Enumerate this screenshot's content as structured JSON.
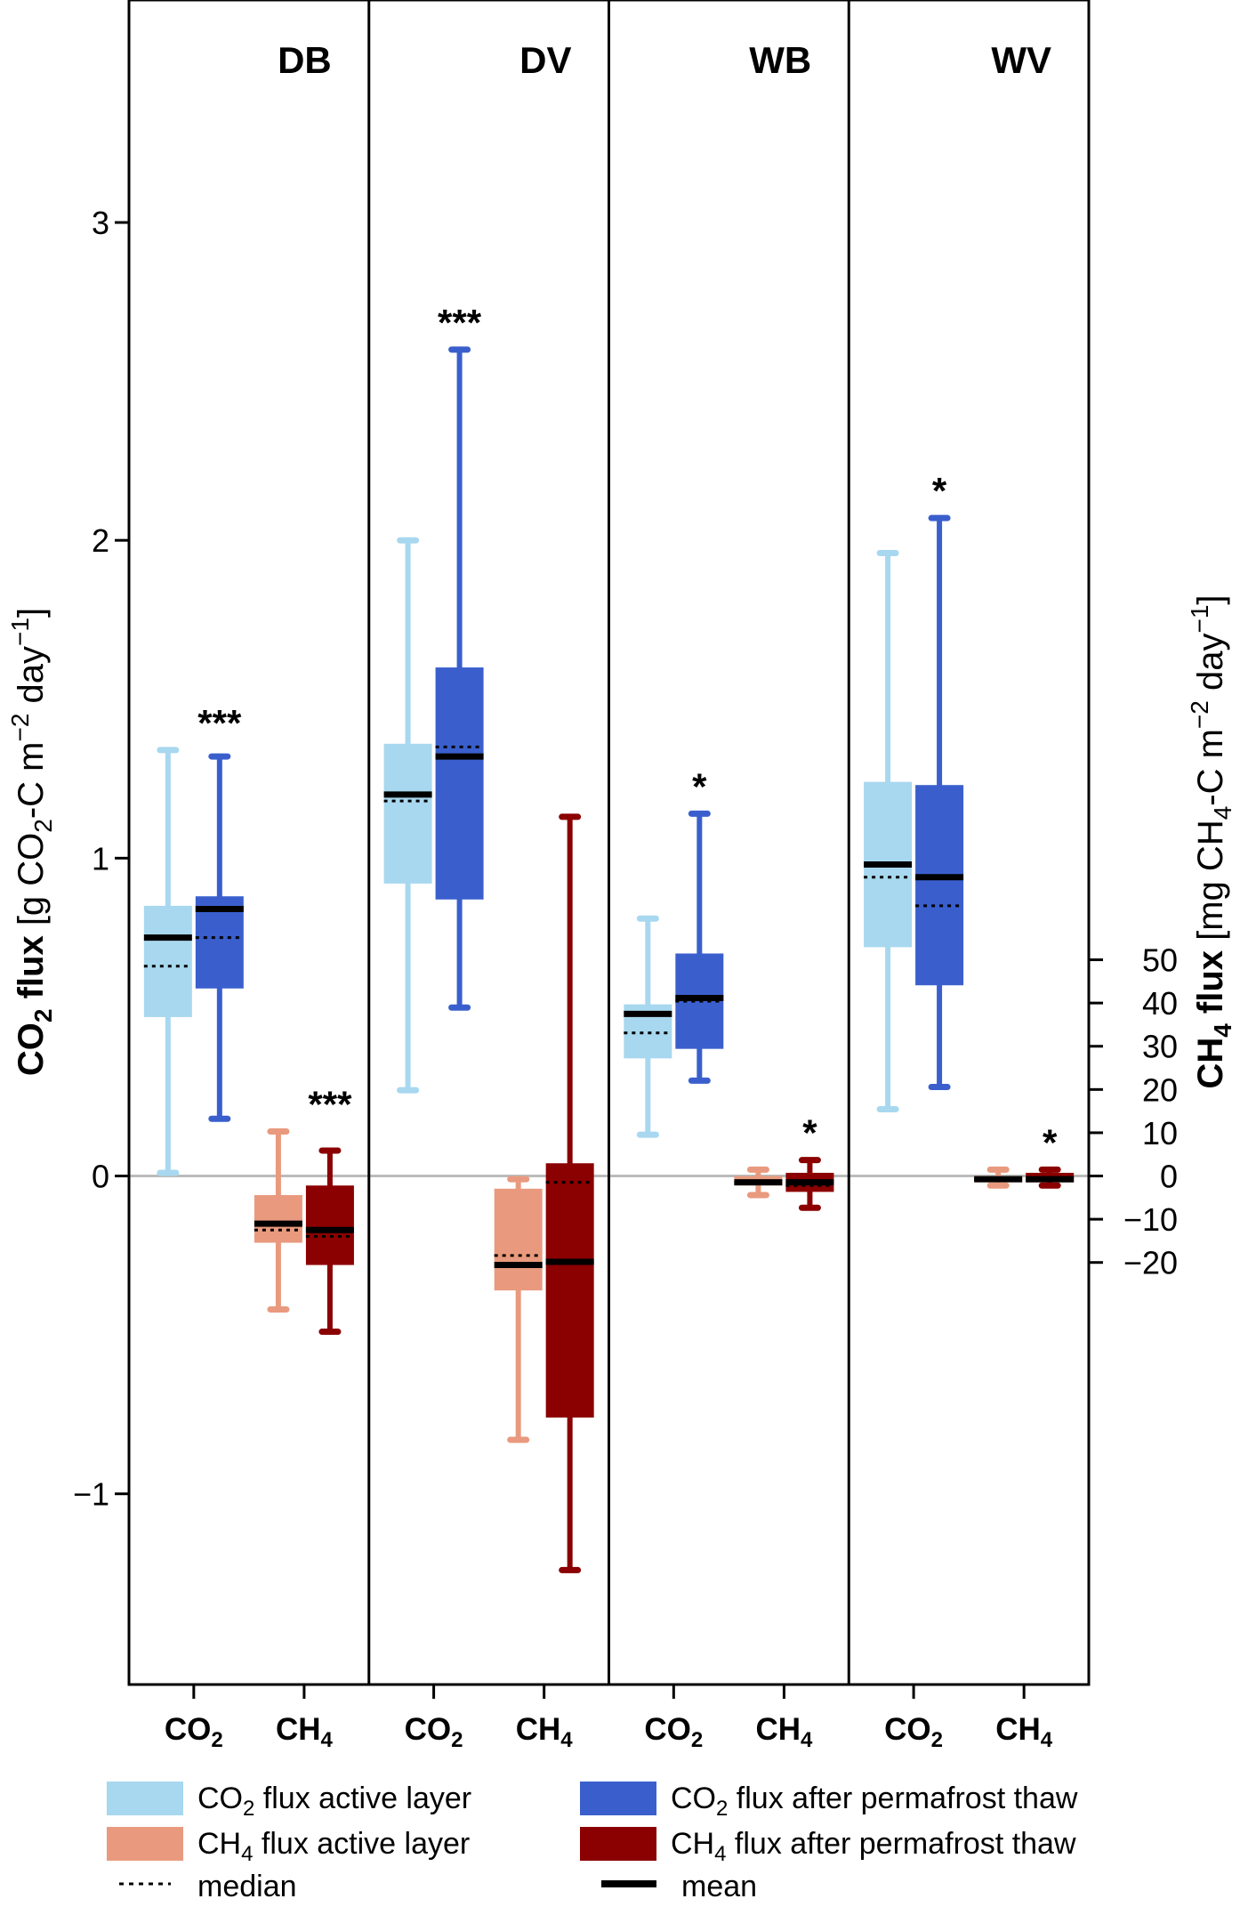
{
  "chart_data": {
    "type": "box",
    "panels": [
      "DB",
      "DV",
      "WB",
      "WV"
    ],
    "groups": [
      "CO2",
      "CH4"
    ],
    "y_left": {
      "label": "CO2 flux [g CO2-C m-2 day-1]",
      "label_bold": "CO",
      "label_bold_sub": "2",
      "label_bold_rest": " flux",
      "label_rest": " [g CO",
      "label_rest_sub": "2",
      "label_rest_2": "-C m",
      "label_rest_sup": "−2",
      "label_rest_3": " day",
      "label_rest_sup2": "−1",
      "label_rest_4": "]",
      "ticks": [
        -1,
        0,
        1,
        2,
        3
      ],
      "tick_labels": [
        "−1",
        "0",
        "1",
        "2",
        "3"
      ],
      "ylim": [
        -1.6,
        3.7
      ]
    },
    "y_right": {
      "label": "CH4 flux [mg CH4-C m-2 day-1]",
      "label_bold": "CH",
      "label_bold_sub": "4",
      "label_bold_rest": " flux",
      "label_rest": " [mg CH",
      "label_rest_sub": "4",
      "label_rest_2": "-C m",
      "label_rest_sup": "−2",
      "label_rest_3": " day",
      "label_rest_sup2": "−1",
      "label_rest_4": "]",
      "ticks": [
        -20,
        -10,
        0,
        10,
        20,
        30,
        40,
        50
      ],
      "tick_labels": [
        "−20",
        "−10",
        "0",
        "10",
        "20",
        "30",
        "40",
        "50"
      ]
    },
    "x_tick_labels": [
      {
        "main": "CO",
        "sub": "2"
      },
      {
        "main": "CH",
        "sub": "4"
      },
      {
        "main": "CO",
        "sub": "2"
      },
      {
        "main": "CH",
        "sub": "4"
      },
      {
        "main": "CO",
        "sub": "2"
      },
      {
        "main": "CH",
        "sub": "4"
      },
      {
        "main": "CO",
        "sub": "2"
      },
      {
        "main": "CH",
        "sub": "4"
      }
    ],
    "series": [
      {
        "key": "co2_active",
        "color": "#a8d8ef"
      },
      {
        "key": "co2_thaw",
        "color": "#3a5fcd"
      },
      {
        "key": "ch4_active",
        "color": "#e99a7e"
      },
      {
        "key": "ch4_thaw",
        "color": "#8b0000"
      }
    ],
    "boxes": [
      {
        "panel": "DB",
        "group": "CO2",
        "series": "co2_active",
        "whisker_low": 0.01,
        "q1": 0.5,
        "median": 0.66,
        "mean": 0.75,
        "q3": 0.85,
        "whisker_high": 1.34
      },
      {
        "panel": "DB",
        "group": "CO2",
        "series": "co2_thaw",
        "whisker_low": 0.18,
        "q1": 0.59,
        "median": 0.75,
        "mean": 0.84,
        "q3": 0.88,
        "whisker_high": 1.32
      },
      {
        "panel": "DB",
        "group": "CH4",
        "series": "ch4_active",
        "whisker_low": -0.42,
        "q1": -0.21,
        "median": -0.17,
        "mean": -0.15,
        "q3": -0.06,
        "whisker_high": 0.14
      },
      {
        "panel": "DB",
        "group": "CH4",
        "series": "ch4_thaw",
        "whisker_low": -0.49,
        "q1": -0.28,
        "median": -0.19,
        "mean": -0.17,
        "q3": -0.03,
        "whisker_high": 0.08
      },
      {
        "panel": "DV",
        "group": "CO2",
        "series": "co2_active",
        "whisker_low": 0.27,
        "q1": 0.92,
        "median": 1.18,
        "mean": 1.2,
        "q3": 1.36,
        "whisker_high": 2.0
      },
      {
        "panel": "DV",
        "group": "CO2",
        "series": "co2_thaw",
        "whisker_low": 0.53,
        "q1": 0.87,
        "median": 1.35,
        "mean": 1.32,
        "q3": 1.6,
        "whisker_high": 2.6
      },
      {
        "panel": "DV",
        "group": "CH4",
        "series": "ch4_active",
        "whisker_low": -0.83,
        "q1": -0.36,
        "median": -0.25,
        "mean": -0.28,
        "q3": -0.04,
        "whisker_high": -0.01
      },
      {
        "panel": "DV",
        "group": "CH4",
        "series": "ch4_thaw",
        "whisker_low": -1.24,
        "q1": -0.76,
        "median": -0.02,
        "mean": -0.27,
        "q3": 0.04,
        "whisker_high": 1.13
      },
      {
        "panel": "WB",
        "group": "CO2",
        "series": "co2_active",
        "whisker_low": 0.13,
        "q1": 0.37,
        "median": 0.45,
        "mean": 0.51,
        "q3": 0.54,
        "whisker_high": 0.81
      },
      {
        "panel": "WB",
        "group": "CO2",
        "series": "co2_thaw",
        "whisker_low": 0.3,
        "q1": 0.4,
        "median": 0.55,
        "mean": 0.56,
        "q3": 0.7,
        "whisker_high": 1.14
      },
      {
        "panel": "WB",
        "group": "CH4",
        "series": "ch4_active",
        "whisker_low": -0.06,
        "q1": -0.03,
        "median": -0.02,
        "mean": -0.02,
        "q3": 0.0,
        "whisker_high": 0.02
      },
      {
        "panel": "WB",
        "group": "CH4",
        "series": "ch4_thaw",
        "whisker_low": -0.1,
        "q1": -0.05,
        "median": -0.03,
        "mean": -0.02,
        "q3": 0.01,
        "whisker_high": 0.05
      },
      {
        "panel": "WV",
        "group": "CO2",
        "series": "co2_active",
        "whisker_low": 0.21,
        "q1": 0.72,
        "median": 0.94,
        "mean": 0.98,
        "q3": 1.24,
        "whisker_high": 1.96
      },
      {
        "panel": "WV",
        "group": "CO2",
        "series": "co2_thaw",
        "whisker_low": 0.28,
        "q1": 0.6,
        "median": 0.85,
        "mean": 0.94,
        "q3": 1.23,
        "whisker_high": 2.07
      },
      {
        "panel": "WV",
        "group": "CH4",
        "series": "ch4_active",
        "whisker_low": -0.03,
        "q1": -0.02,
        "median": -0.01,
        "mean": -0.01,
        "q3": 0.0,
        "whisker_high": 0.02
      },
      {
        "panel": "WV",
        "group": "CH4",
        "series": "ch4_thaw",
        "whisker_low": -0.03,
        "q1": -0.02,
        "median": -0.01,
        "mean": -0.01,
        "q3": 0.01,
        "whisker_high": 0.02
      }
    ],
    "significance": [
      {
        "panel": "DB",
        "group": "CO2",
        "label": "***"
      },
      {
        "panel": "DB",
        "group": "CH4",
        "label": "***"
      },
      {
        "panel": "DV",
        "group": "CO2",
        "label": "***"
      },
      {
        "panel": "WB",
        "group": "CO2",
        "label": "*"
      },
      {
        "panel": "WB",
        "group": "CH4",
        "label": "*"
      },
      {
        "panel": "WV",
        "group": "CO2",
        "label": "*"
      },
      {
        "panel": "WV",
        "group": "CH4",
        "label": "*"
      }
    ],
    "zero_line_color": "#bbbbbb",
    "legend": {
      "position": "bottom",
      "items": [
        {
          "series": "co2_active",
          "type": "box",
          "pre": "CO",
          "sub": "2",
          "post": " flux active layer"
        },
        {
          "series": "co2_thaw",
          "type": "box",
          "pre": "CO",
          "sub": "2",
          "post": " flux after permafrost thaw"
        },
        {
          "series": "ch4_active",
          "type": "box",
          "pre": "CH",
          "sub": "4",
          "post": " flux active layer"
        },
        {
          "series": "ch4_thaw",
          "type": "box",
          "pre": "CH",
          "sub": "4",
          "post": " flux after permafrost thaw"
        },
        {
          "type": "median",
          "pre": "median",
          "sub": "",
          "post": ""
        },
        {
          "type": "mean",
          "pre": "mean",
          "sub": "",
          "post": ""
        }
      ]
    }
  }
}
